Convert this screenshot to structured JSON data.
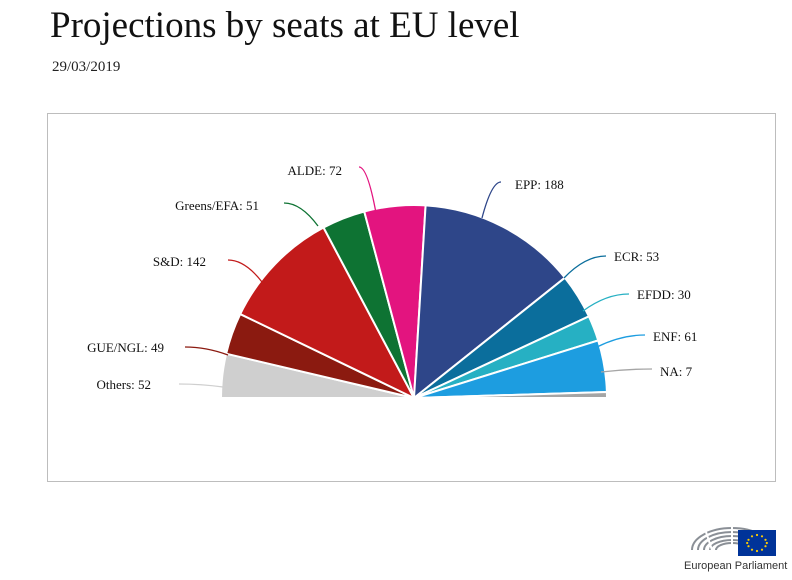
{
  "title": "Projections by seats at EU level",
  "date": "29/03/2019",
  "logo": {
    "text": "European Parliament"
  },
  "chart_data": {
    "type": "pie",
    "title": "",
    "slices": [
      {
        "name": "Others",
        "value": 52,
        "label": "Others: 52",
        "color": "#cfcfcf"
      },
      {
        "name": "GUE/NGL",
        "value": 49,
        "label": "GUE/NGL: 49",
        "color": "#8b1a10"
      },
      {
        "name": "S&D",
        "value": 142,
        "label": "S&D: 142",
        "color": "#c21a1a"
      },
      {
        "name": "Greens/EFA",
        "value": 51,
        "label": "Greens/EFA: 51",
        "color": "#0e7333"
      },
      {
        "name": "ALDE",
        "value": 72,
        "label": "ALDE: 72",
        "color": "#e3147f"
      },
      {
        "name": "EPP",
        "value": 188,
        "label": "EPP: 188",
        "color": "#2e4689"
      },
      {
        "name": "ECR",
        "value": 53,
        "label": "ECR: 53",
        "color": "#0b6e9c"
      },
      {
        "name": "EFDD",
        "value": 30,
        "label": "EFDD: 30",
        "color": "#26b0c3"
      },
      {
        "name": "ENF",
        "value": 61,
        "label": "ENF: 61",
        "color": "#1d9de0"
      },
      {
        "name": "NA",
        "value": 7,
        "label": "NA: 7",
        "color": "#a5a5a5"
      }
    ],
    "layout": "semicircle"
  }
}
